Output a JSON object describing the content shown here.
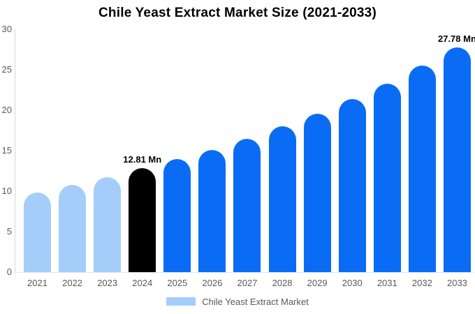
{
  "title": "Chile Yeast Extract Market Size (2021-2033)",
  "colors": {
    "historical": "#a5cdfa",
    "highlight": "#000000",
    "forecast": "#0a6cf5",
    "axis_text": "#595959",
    "axis_line": "#d6d6d6",
    "baseline": "#e5e5e5"
  },
  "legend": {
    "label": "Chile Yeast Extract Market",
    "swatch_color": "#a5cdfa"
  },
  "chart_data": {
    "type": "bar",
    "title": "Chile Yeast Extract Market Size (2021-2033)",
    "categories": [
      "2021",
      "2022",
      "2023",
      "2024",
      "2025",
      "2026",
      "2027",
      "2028",
      "2029",
      "2030",
      "2031",
      "2032",
      "2033"
    ],
    "values": [
      9.8,
      10.8,
      11.7,
      12.81,
      14.0,
      15.1,
      16.5,
      18.0,
      19.6,
      21.4,
      23.3,
      25.5,
      27.78
    ],
    "bar_colors": [
      "historical",
      "historical",
      "historical",
      "highlight",
      "forecast",
      "forecast",
      "forecast",
      "forecast",
      "forecast",
      "forecast",
      "forecast",
      "forecast",
      "forecast"
    ],
    "annotations": [
      {
        "category": "2024",
        "text": "12.81 Mn"
      },
      {
        "category": "2033",
        "text": "27.78 Mn"
      }
    ],
    "xlabel": "",
    "ylabel": "",
    "ylim": [
      0,
      30
    ],
    "yticks": [
      0,
      5,
      10,
      15,
      20,
      25,
      30
    ],
    "grid": false,
    "bar_top_style": "rounded",
    "legend_position": "bottom-center"
  }
}
